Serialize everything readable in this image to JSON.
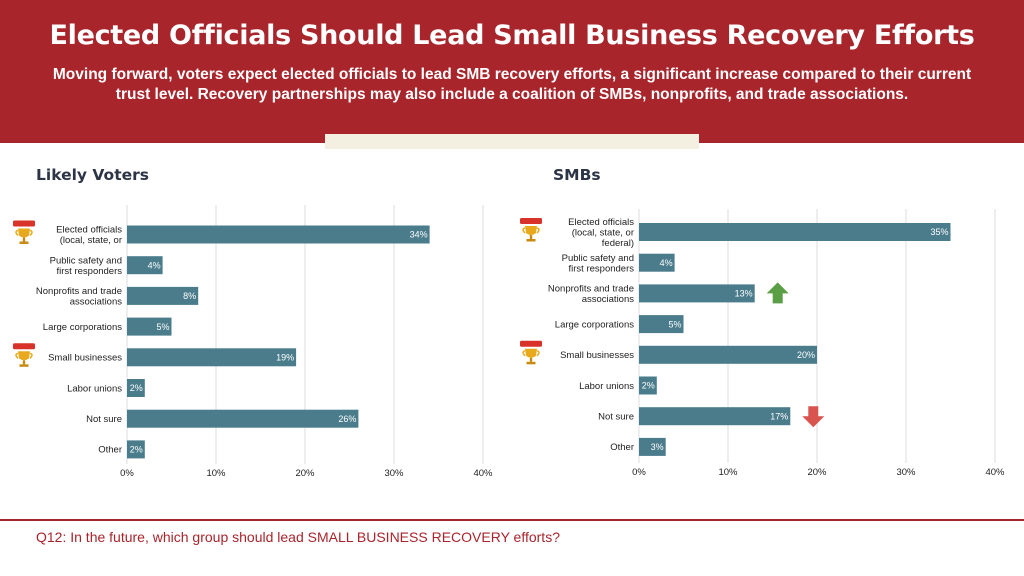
{
  "header": {
    "title": "Elected Officials Should Lead Small Business Recovery Efforts",
    "subtitle": "Moving forward, voters expect elected officials to lead SMB recovery efforts, a significant increase compared to their current trust level. Recovery partnerships may also include a coalition of SMBs, nonprofits, and trade associations."
  },
  "footer": {
    "question": "Q12: In the future, which group should lead SMALL BUSINESS RECOVERY efforts?"
  },
  "colors": {
    "bar": "#4a7c8c",
    "brand_red": "#a8252c",
    "up_arrow": "#5a9e45",
    "down_arrow": "#d9534f",
    "grid": "#dddddd"
  },
  "chart_data": [
    {
      "type": "bar",
      "orientation": "horizontal",
      "title": "Likely Voters",
      "categories": [
        [
          "Elected officials",
          "(local, state, or"
        ],
        [
          "Public safety and",
          "first responders"
        ],
        [
          "Nonprofits and trade",
          "associations"
        ],
        [
          "Large corporations"
        ],
        [
          "Small businesses"
        ],
        [
          "Labor unions"
        ],
        [
          "Not sure"
        ],
        [
          "Other"
        ]
      ],
      "values": [
        34,
        4,
        8,
        5,
        19,
        2,
        26,
        2
      ],
      "value_labels": [
        "34%",
        "4%",
        "8%",
        "5%",
        "19%",
        "2%",
        "26%",
        "2%"
      ],
      "xlim": [
        0,
        40
      ],
      "x_ticks": [
        "0%",
        "10%",
        "20%",
        "30%",
        "40%"
      ],
      "grid": true,
      "trophy_icons": [
        0,
        4
      ],
      "arrows": []
    },
    {
      "type": "bar",
      "orientation": "horizontal",
      "title": "SMBs",
      "categories": [
        [
          "Elected officials",
          "(local, state, or",
          "federal)"
        ],
        [
          "Public safety and",
          "first responders"
        ],
        [
          "Nonprofits and trade",
          "associations"
        ],
        [
          "Large corporations"
        ],
        [
          "Small businesses"
        ],
        [
          "Labor unions"
        ],
        [
          "Not sure"
        ],
        [
          "Other"
        ]
      ],
      "values": [
        35,
        4,
        13,
        5,
        20,
        2,
        17,
        3
      ],
      "value_labels": [
        "35%",
        "4%",
        "13%",
        "5%",
        "20%",
        "2%",
        "17%",
        "3%"
      ],
      "xlim": [
        0,
        40
      ],
      "x_ticks": [
        "0%",
        "10%",
        "20%",
        "30%",
        "40%"
      ],
      "grid": true,
      "trophy_icons": [
        0,
        4
      ],
      "arrows": [
        {
          "index": 2,
          "direction": "up"
        },
        {
          "index": 6,
          "direction": "down"
        }
      ]
    }
  ]
}
